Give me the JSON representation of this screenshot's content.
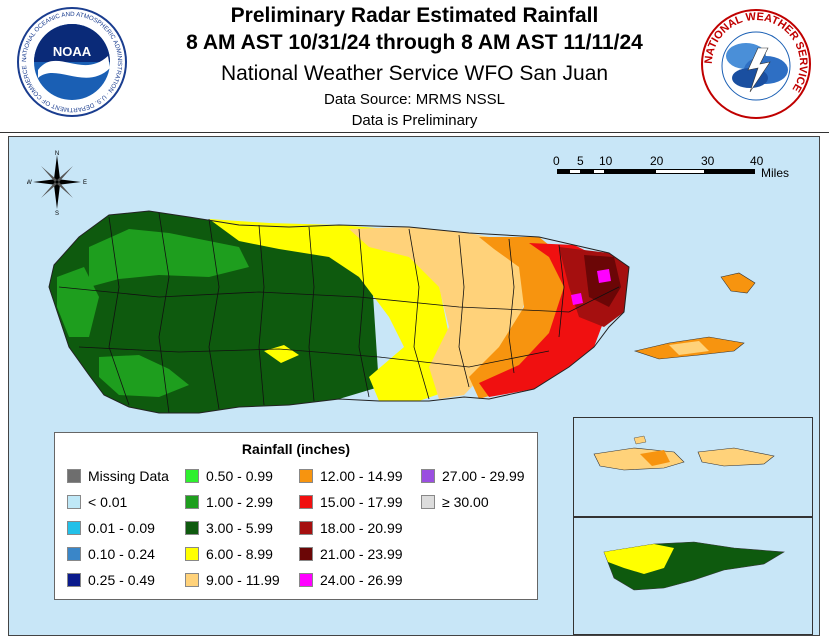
{
  "header": {
    "title_line1": "Preliminary Radar Estimated Rainfall",
    "title_line2": "8 AM AST 10/31/24 through 8 AM AST 11/11/24",
    "office": "National Weather Service WFO San Juan",
    "source": "Data Source: MRMS NSSL",
    "note": "Data is Preliminary"
  },
  "logos": {
    "noaa_text": "NOAA",
    "noaa_ring": "NATIONAL OCEANIC AND ATMOSPHERIC ADMINISTRATION · U.S. DEPARTMENT OF COMMERCE",
    "nws_ring": "NATIONAL WEATHER SERVICE"
  },
  "compass": {
    "n": "N",
    "s": "S",
    "e": "E",
    "w": "W"
  },
  "scale": {
    "labels": [
      "0",
      "5",
      "10",
      "20",
      "30",
      "40"
    ],
    "unit": "Miles"
  },
  "legend": {
    "title": "Rainfall (inches)",
    "items": [
      {
        "label": "Missing Data",
        "color": "#6e6e6e"
      },
      {
        "label": "< 0.01",
        "color": "#bfe8f7"
      },
      {
        "label": "0.01 - 0.09",
        "color": "#22c0e8"
      },
      {
        "label": "0.10 - 0.24",
        "color": "#3a86c8"
      },
      {
        "label": "0.25 - 0.49",
        "color": "#0a1a8c"
      },
      {
        "label": "0.50 - 0.99",
        "color": "#2ef02e"
      },
      {
        "label": "1.00 - 2.99",
        "color": "#1e9e1e"
      },
      {
        "label": "3.00 - 5.99",
        "color": "#0e5a0e"
      },
      {
        "label": "6.00 - 8.99",
        "color": "#ffff00"
      },
      {
        "label": "9.00 - 11.99",
        "color": "#ffd27a"
      },
      {
        "label": "12.00 - 14.99",
        "color": "#f7940f"
      },
      {
        "label": "15.00 - 17.99",
        "color": "#f01010"
      },
      {
        "label": "18.00 - 20.99",
        "color": "#a50f0f"
      },
      {
        "label": "21.00 - 23.99",
        "color": "#6b0606"
      },
      {
        "label": "24.00 - 26.99",
        "color": "#ff00ff"
      },
      {
        "label": "27.00 - 29.99",
        "color": "#9a4fe0"
      },
      {
        "label": "≥ 30.00",
        "color": "#dcdcdc"
      }
    ]
  }
}
